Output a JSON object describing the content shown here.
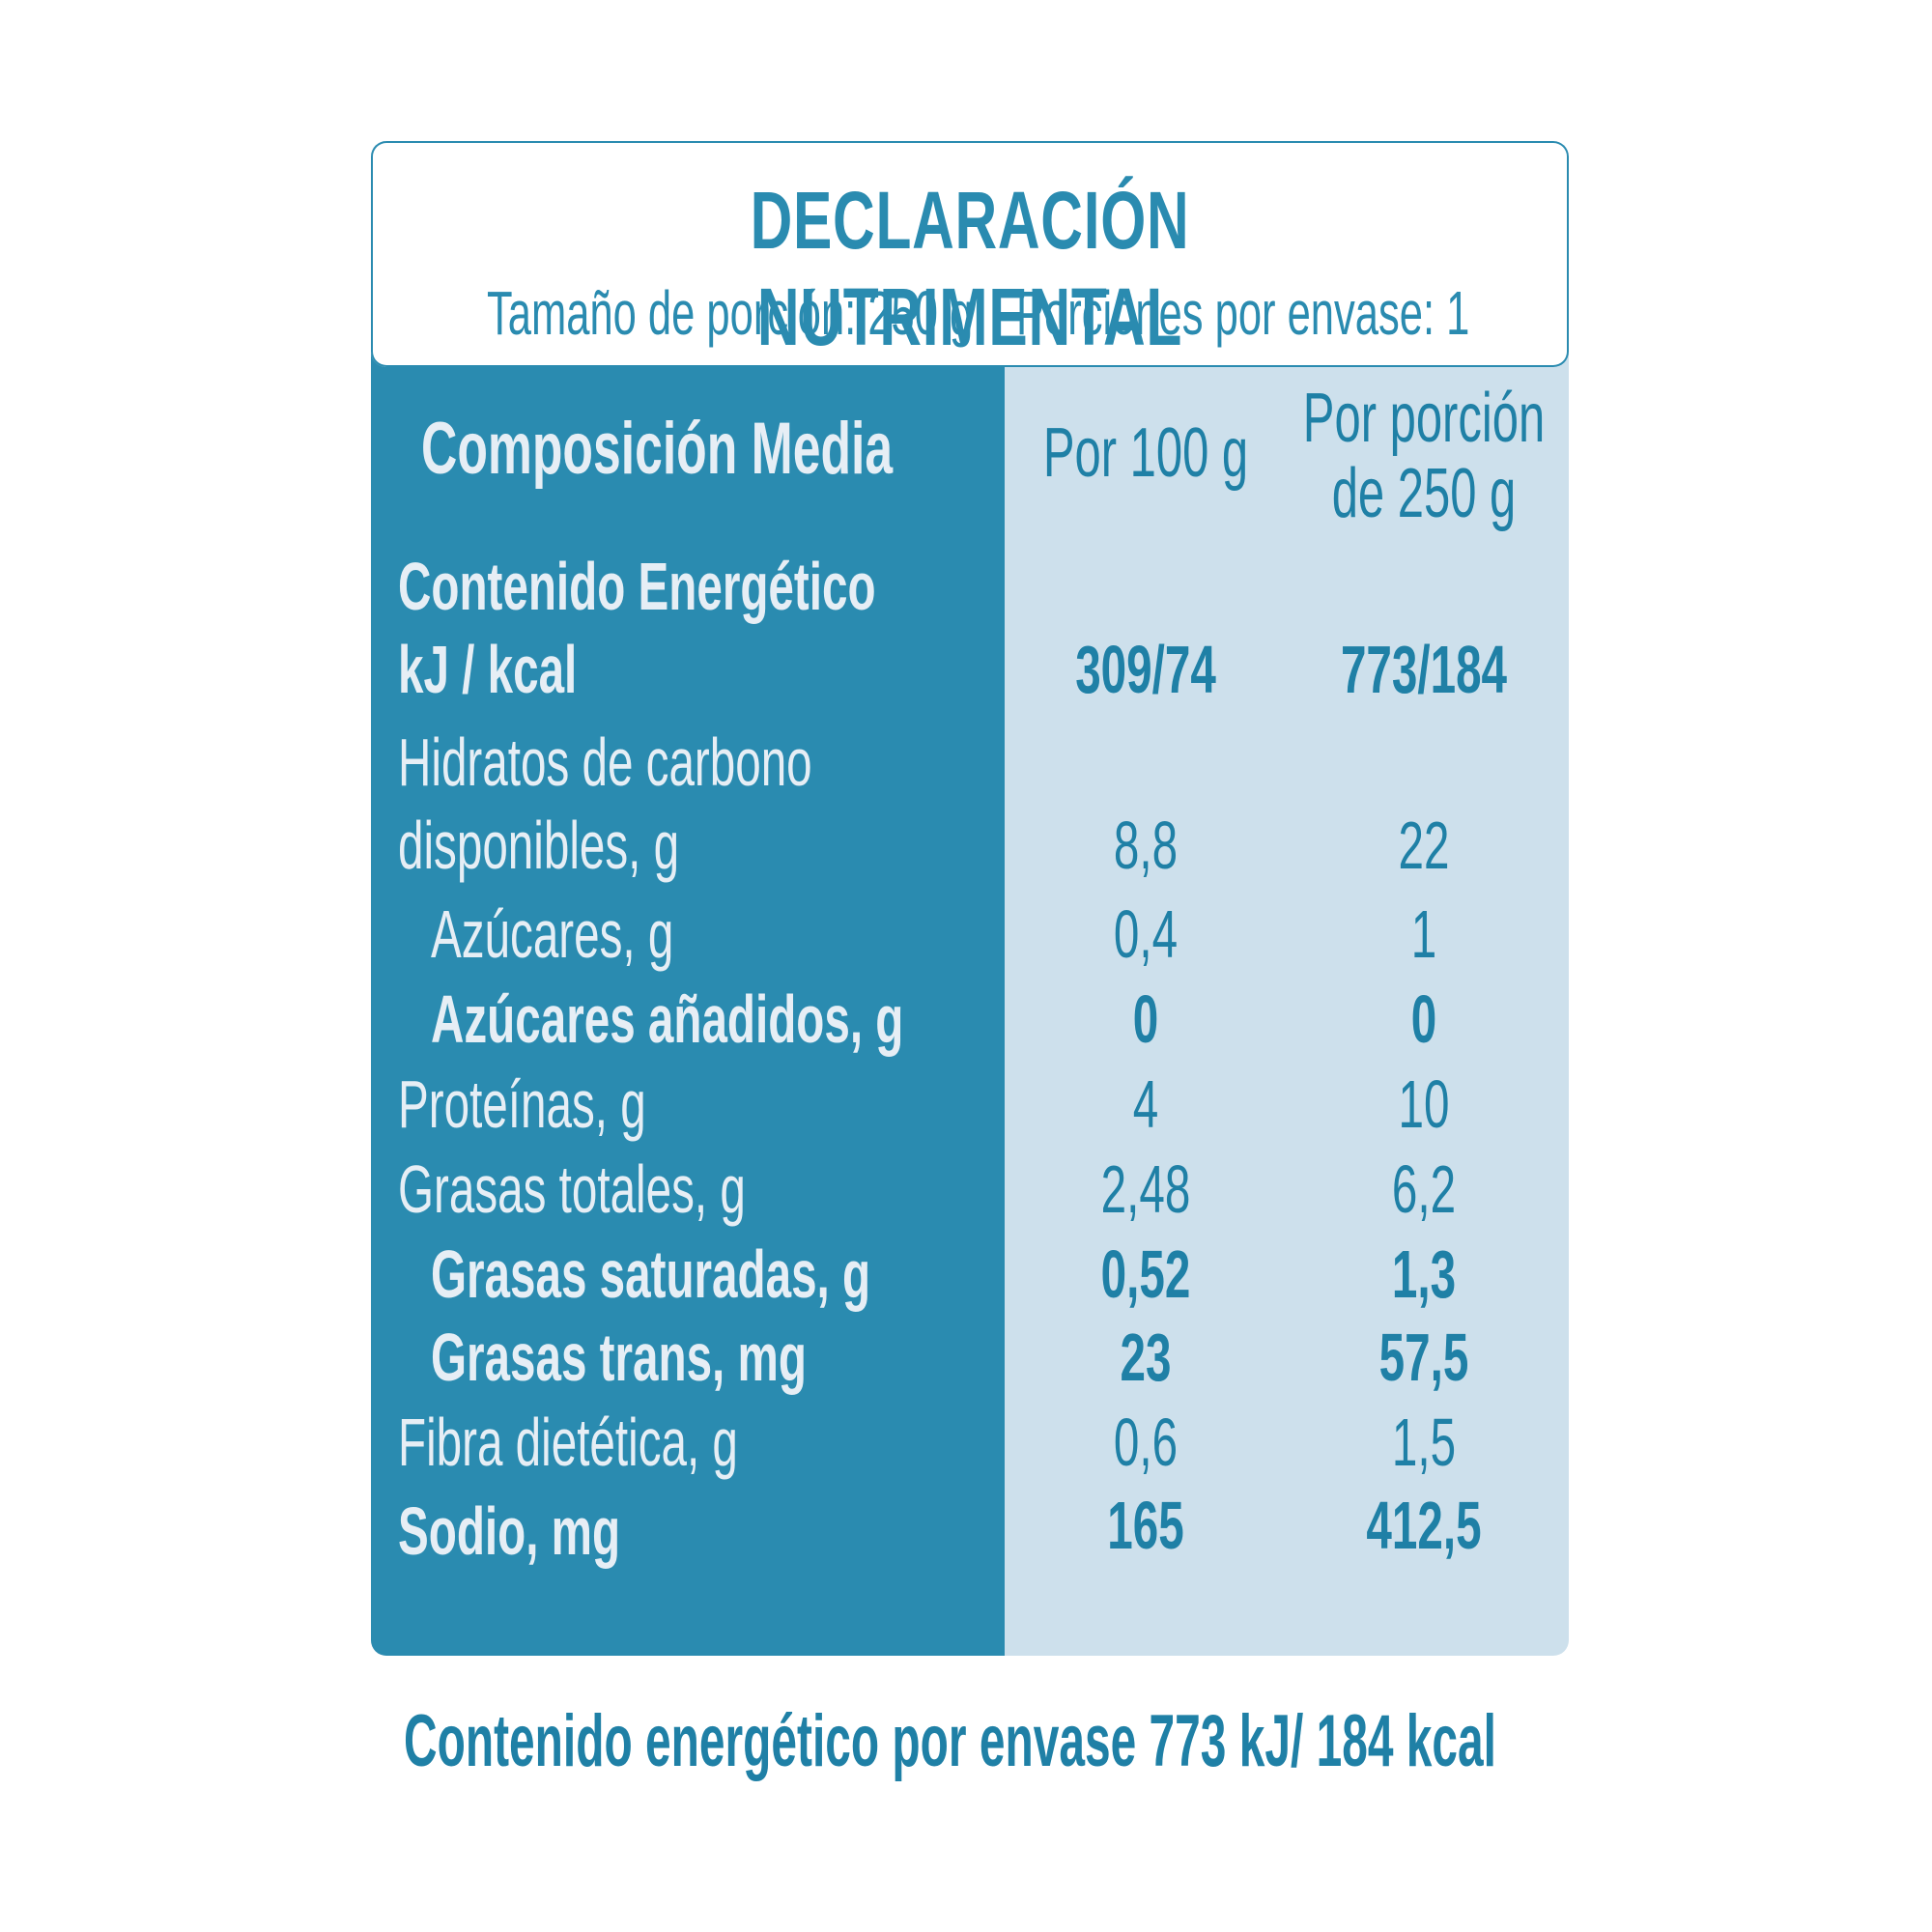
{
  "header": {
    "title": "DECLARACIÓN NUTRIMENTAL",
    "serving_size": "Tamaño de porción: 250 g",
    "servings_per_container": "Porciones por envase: 1"
  },
  "table": {
    "col_label": "Composición Media",
    "col_per100": "Por 100 g",
    "col_portion_line1": "Por porción",
    "col_portion_line2": "de 250 g",
    "rows": [
      {
        "label": "Contenido Energético",
        "label2": "kJ / kcal",
        "per100": "309/74",
        "portion": "773/184"
      },
      {
        "label": "Hidratos de carbono",
        "label2": "disponibles, g",
        "per100": "8,8",
        "portion": "22"
      },
      {
        "label": "Azúcares, g",
        "per100": "0,4",
        "portion": "1"
      },
      {
        "label": "Azúcares añadidos, g",
        "per100": "0",
        "portion": "0"
      },
      {
        "label": "Proteínas, g",
        "per100": "4",
        "portion": "10"
      },
      {
        "label": "Grasas totales, g",
        "per100": "2,48",
        "portion": "6,2"
      },
      {
        "label": "Grasas saturadas, g",
        "per100": "0,52",
        "portion": "1,3"
      },
      {
        "label": "Grasas trans, mg",
        "per100": "23",
        "portion": "57,5"
      },
      {
        "label": "Fibra dietética, g",
        "per100": "0,6",
        "portion": "1,5"
      },
      {
        "label": "Sodio, mg",
        "per100": "165",
        "portion": "412,5"
      }
    ]
  },
  "footer": {
    "text": "Contenido energético por envase  773 kJ/ 184 kcal"
  },
  "colors": {
    "primary": "#2a8bb0",
    "light_panel": "#cde0ec",
    "label_text": "#e6eef5",
    "value_text": "#1f80a6"
  }
}
